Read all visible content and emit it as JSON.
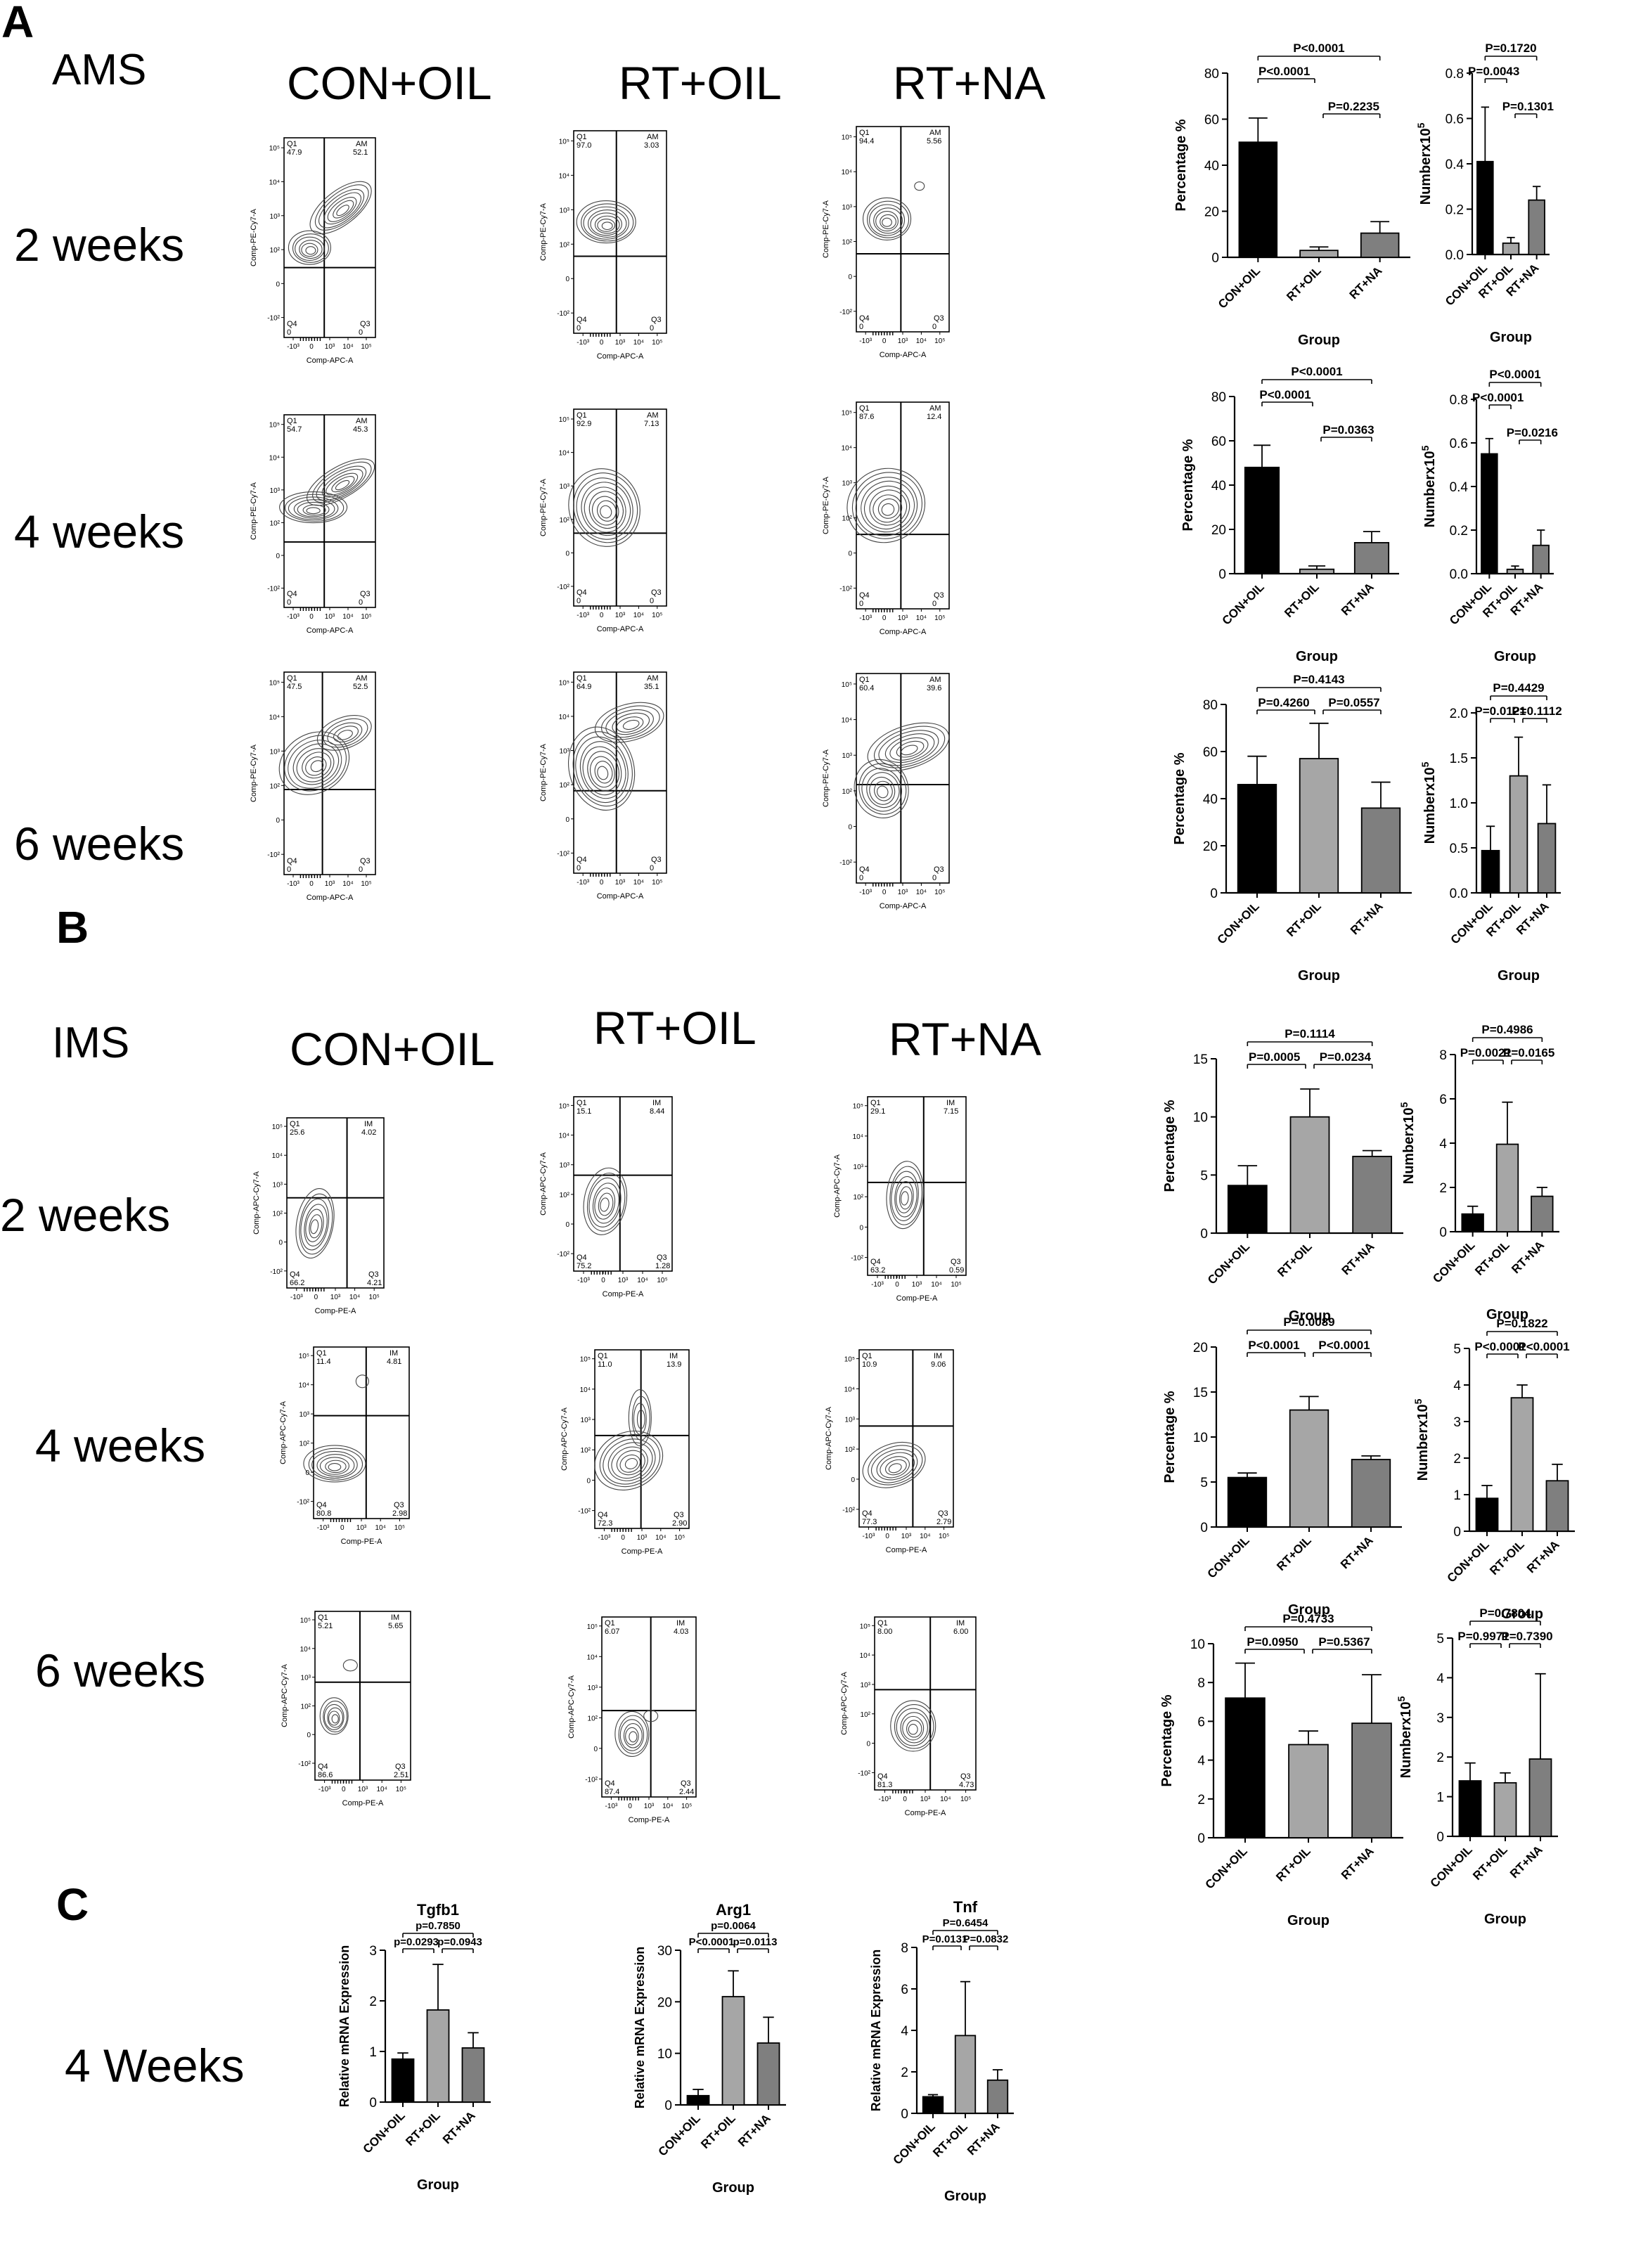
{
  "panels": {
    "A": {
      "letter": "A",
      "title": "AMS",
      "heads": [
        "CON+OIL",
        "RT+OIL",
        "RT+NA"
      ],
      "rows": [
        "2 weeks",
        "4 weeks",
        "6 weeks"
      ]
    },
    "B": {
      "letter": "B",
      "title": "IMS",
      "heads": [
        "CON+OIL",
        "RT+OIL",
        "RT+NA"
      ],
      "rows": [
        "2 weeks",
        "4 weeks",
        "6 weeks"
      ]
    },
    "C": {
      "letter": "C",
      "row": "4 Weeks"
    }
  },
  "flow_plots": [
    {
      "ylab": "Comp-PE-Cy7-A",
      "xlab": "Comp-APC-A",
      "gate": "AM",
      "q1": "47.9",
      "q2": "52.1",
      "q3": "0",
      "q4": "0"
    },
    {
      "ylab": "Comp-PE-Cy7-A",
      "xlab": "Comp-APC-A",
      "gate": "AM",
      "q1": "97.0",
      "q2": "3.03",
      "q3": "0",
      "q4": "0"
    },
    {
      "ylab": "Comp-PE-Cy7-A",
      "xlab": "Comp-APC-A",
      "gate": "AM",
      "q1": "94.4",
      "q2": "5.56",
      "q3": "0",
      "q4": "0"
    },
    {
      "ylab": "Comp-PE-Cy7-A",
      "xlab": "Comp-APC-A",
      "gate": "AM",
      "q1": "54.7",
      "q2": "45.3",
      "q3": "0",
      "q4": "0"
    },
    {
      "ylab": "Comp-PE-Cy7-A",
      "xlab": "Comp-APC-A",
      "gate": "AM",
      "q1": "92.9",
      "q2": "7.13",
      "q3": "0",
      "q4": "0"
    },
    {
      "ylab": "Comp-PE-Cy7-A",
      "xlab": "Comp-APC-A",
      "gate": "AM",
      "q1": "87.6",
      "q2": "12.4",
      "q3": "0",
      "q4": "0"
    },
    {
      "ylab": "Comp-PE-Cy7-A",
      "xlab": "Comp-APC-A",
      "gate": "AM",
      "q1": "47.5",
      "q2": "52.5",
      "q3": "0",
      "q4": "0"
    },
    {
      "ylab": "Comp-PE-Cy7-A",
      "xlab": "Comp-APC-A",
      "gate": "AM",
      "q1": "64.9",
      "q2": "35.1",
      "q3": "0",
      "q4": "0"
    },
    {
      "ylab": "Comp-PE-Cy7-A",
      "xlab": "Comp-APC-A",
      "gate": "AM",
      "q1": "60.4",
      "q2": "39.6",
      "q3": "0",
      "q4": "0"
    },
    {
      "ylab": "Comp-APC-Cy7-A",
      "xlab": "Comp-PE-A",
      "gate": "IM",
      "q1": "25.6",
      "q2": "4.02",
      "q3": "4.21",
      "q4": "66.2"
    },
    {
      "ylab": "Comp-APC-Cy7-A",
      "xlab": "Comp-PE-A",
      "gate": "IM",
      "q1": "15.1",
      "q2": "8.44",
      "q3": "1.28",
      "q4": "75.2"
    },
    {
      "ylab": "Comp-APC-Cy7-A",
      "xlab": "Comp-PE-A",
      "gate": "IM",
      "q1": "29.1",
      "q2": "7.15",
      "q3": "0.59",
      "q4": "63.2"
    },
    {
      "ylab": "Comp-APC-Cy7-A",
      "xlab": "Comp-PE-A",
      "gate": "IM",
      "q1": "11.4",
      "q2": "4.81",
      "q3": "2.98",
      "q4": "80.8"
    },
    {
      "ylab": "Comp-APC-Cy7-A",
      "xlab": "Comp-PE-A",
      "gate": "IM",
      "q1": "11.0",
      "q2": "13.9",
      "q3": "2.90",
      "q4": "72.3"
    },
    {
      "ylab": "Comp-APC-Cy7-A",
      "xlab": "Comp-PE-A",
      "gate": "IM",
      "q1": "10.9",
      "q2": "9.06",
      "q3": "2.79",
      "q4": "77.3"
    },
    {
      "ylab": "Comp-APC-Cy7-A",
      "xlab": "Comp-PE-A",
      "gate": "IM",
      "q1": "5.21",
      "q2": "5.65",
      "q3": "2.51",
      "q4": "86.6"
    },
    {
      "ylab": "Comp-APC-Cy7-A",
      "xlab": "Comp-PE-A",
      "gate": "IM",
      "q1": "6.07",
      "q2": "4.03",
      "q3": "2.44",
      "q4": "87.4"
    },
    {
      "ylab": "Comp-APC-Cy7-A",
      "xlab": "Comp-PE-A",
      "gate": "IM",
      "q1": "8.00",
      "q2": "6.00",
      "q3": "4.73",
      "q4": "81.3"
    }
  ],
  "chart_data": [
    {
      "type": "bar",
      "categories": [
        "CON+OIL",
        "RT+OIL",
        "RT+NA"
      ],
      "values": [
        50,
        3,
        10.5
      ],
      "errors": [
        10.5,
        1.5,
        5
      ],
      "ylabel": "Percentage %",
      "xlabel": "Group",
      "ylim": [
        0,
        80
      ],
      "yticks": [
        "0",
        "20",
        "40",
        "60",
        "80"
      ],
      "p_values": [
        "P<0.0001",
        "P<0.0001",
        "P=0.2235"
      ]
    },
    {
      "type": "bar",
      "categories": [
        "CON+OIL",
        "RT+OIL",
        "RT+NA"
      ],
      "values": [
        0.41,
        0.05,
        0.24
      ],
      "errors": [
        0.24,
        0.025,
        0.06
      ],
      "ylabel": "Numberx10",
      "ylabel_sup": "5",
      "xlabel": "Group",
      "ylim": [
        0,
        0.8
      ],
      "yticks": [
        "0.0",
        "0.2",
        "0.4",
        "0.6",
        "0.8"
      ],
      "p_values": [
        "P=0.1720",
        "P=0.0043",
        "P=0.1301"
      ]
    },
    {
      "type": "bar",
      "categories": [
        "CON+OIL",
        "RT+OIL",
        "RT+NA"
      ],
      "values": [
        48,
        2,
        14
      ],
      "errors": [
        10,
        1.5,
        5
      ],
      "ylabel": "Percentage %",
      "xlabel": "Group",
      "ylim": [
        0,
        80
      ],
      "yticks": [
        "0",
        "20",
        "40",
        "60",
        "80"
      ],
      "p_values": [
        "P<0.0001",
        "P<0.0001",
        "P=0.0363"
      ]
    },
    {
      "type": "bar",
      "categories": [
        "CON+OIL",
        "RT+OIL",
        "RT+NA"
      ],
      "values": [
        0.55,
        0.02,
        0.13
      ],
      "errors": [
        0.07,
        0.015,
        0.07
      ],
      "ylabel": "Numberx10",
      "ylabel_sup": "5",
      "xlabel": "Group",
      "ylim": [
        0,
        0.8
      ],
      "yticks": [
        "0.0",
        "0.2",
        "0.4",
        "0.6",
        "0.8"
      ],
      "p_values": [
        "P<0.0001",
        "P<0.0001",
        "P=0.0216"
      ]
    },
    {
      "type": "bar",
      "categories": [
        "CON+OIL",
        "RT+OIL",
        "RT+NA"
      ],
      "values": [
        46,
        57,
        36
      ],
      "errors": [
        12,
        15,
        11
      ],
      "ylabel": "Percentage %",
      "xlabel": "Group",
      "ylim": [
        0,
        80
      ],
      "yticks": [
        "0",
        "20",
        "40",
        "60",
        "80"
      ],
      "p_values": [
        "P=0.4143",
        "P=0.4260",
        "P=0.0557"
      ]
    },
    {
      "type": "bar",
      "categories": [
        "CON+OIL",
        "RT+OIL",
        "RT+NA"
      ],
      "values": [
        0.47,
        1.3,
        0.77
      ],
      "errors": [
        0.27,
        0.43,
        0.43
      ],
      "ylabel": "Numberx10",
      "ylabel_sup": "5",
      "xlabel": "Group",
      "ylim": [
        0,
        2.0
      ],
      "yticks": [
        "0.0",
        "0.5",
        "1.0",
        "1.5",
        "2.0"
      ],
      "p_values": [
        "P=0.4429",
        "P=0.0121",
        "P=0.1112"
      ]
    },
    {
      "type": "bar",
      "categories": [
        "CON+OIL",
        "RT+OIL",
        "RT+NA"
      ],
      "values": [
        4.1,
        10,
        6.6
      ],
      "errors": [
        1.7,
        2.4,
        0.5
      ],
      "ylabel": "Percentage %",
      "xlabel": "Group",
      "ylim": [
        0,
        15
      ],
      "yticks": [
        "0",
        "5",
        "10",
        "15"
      ],
      "p_values": [
        "P=0.1114",
        "P=0.0005",
        "P=0.0234"
      ]
    },
    {
      "type": "bar",
      "categories": [
        "CON+OIL",
        "RT+OIL",
        "RT+NA"
      ],
      "values": [
        0.8,
        3.95,
        1.6
      ],
      "errors": [
        0.35,
        1.9,
        0.4
      ],
      "ylabel": "Numberx10",
      "ylabel_sup": "5",
      "xlabel": "Group",
      "ylim": [
        0,
        8
      ],
      "yticks": [
        "0",
        "2",
        "4",
        "6",
        "8"
      ],
      "p_values": [
        "P=0.4986",
        "P=0.0021",
        "P=0.0165"
      ]
    },
    {
      "type": "bar",
      "categories": [
        "CON+OIL",
        "RT+OIL",
        "RT+NA"
      ],
      "values": [
        5.5,
        13,
        7.5
      ],
      "errors": [
        0.5,
        1.5,
        0.4
      ],
      "ylabel": "Percentage %",
      "xlabel": "Group",
      "ylim": [
        0,
        20
      ],
      "yticks": [
        "0",
        "5",
        "10",
        "15",
        "20"
      ],
      "p_values": [
        "P=0.0089",
        "P<0.0001",
        "P<0.0001"
      ]
    },
    {
      "type": "bar",
      "categories": [
        "CON+OIL",
        "RT+OIL",
        "RT+NA"
      ],
      "values": [
        0.9,
        3.65,
        1.38
      ],
      "errors": [
        0.35,
        0.35,
        0.45
      ],
      "ylabel": "Numberx10",
      "ylabel_sup": "5",
      "xlabel": "Group",
      "ylim": [
        0,
        5
      ],
      "yticks": [
        "0",
        "1",
        "2",
        "3",
        "4",
        "5"
      ],
      "p_values": [
        "P=0.1822",
        "P<0.0001",
        "P<0.0001"
      ]
    },
    {
      "type": "bar",
      "categories": [
        "CON+OIL",
        "RT+OIL",
        "RT+NA"
      ],
      "values": [
        7.2,
        4.8,
        5.9
      ],
      "errors": [
        1.8,
        0.7,
        2.5
      ],
      "ylabel": "Percentage %",
      "xlabel": "Group",
      "ylim": [
        0,
        10
      ],
      "yticks": [
        "0",
        "2",
        "4",
        "6",
        "8",
        "10"
      ],
      "p_values": [
        "P=0.4733",
        "P=0.0950",
        "P=0.5367"
      ]
    },
    {
      "type": "bar",
      "categories": [
        "CON+OIL",
        "RT+OIL",
        "RT+NA"
      ],
      "values": [
        1.4,
        1.35,
        1.95
      ],
      "errors": [
        0.45,
        0.25,
        2.15
      ],
      "ylabel": "Numberx10",
      "ylabel_sup": "5",
      "xlabel": "Group",
      "ylim": [
        0,
        5
      ],
      "yticks": [
        "0",
        "1",
        "2",
        "3",
        "4",
        "5"
      ],
      "p_values": [
        "P=0.7804",
        "P=0.9971",
        "P=0.7390"
      ]
    },
    {
      "type": "bar",
      "title": "Tgfb1",
      "categories": [
        "CON+OIL",
        "RT+OIL",
        "RT+NA"
      ],
      "values": [
        0.85,
        1.82,
        1.07
      ],
      "errors": [
        0.12,
        0.9,
        0.3
      ],
      "ylabel": "Relative mRNA Expression",
      "xlabel": "Group",
      "ylim": [
        0,
        3
      ],
      "yticks": [
        "0",
        "1",
        "2",
        "3"
      ],
      "p_values": [
        "p=0.7850",
        "p=0.0293",
        "p=0.0943"
      ]
    },
    {
      "type": "bar",
      "title": "Arg1",
      "categories": [
        "CON+OIL",
        "RT+OIL",
        "RT+NA"
      ],
      "values": [
        1.8,
        21,
        12
      ],
      "errors": [
        1.2,
        5,
        5
      ],
      "ylabel": "Relative mRNA Expression",
      "xlabel": "Group",
      "ylim": [
        0,
        30
      ],
      "yticks": [
        "0",
        "10",
        "20",
        "30"
      ],
      "p_values": [
        "p=0.0064",
        "P<0.0001",
        "p=0.0113"
      ]
    },
    {
      "type": "bar",
      "title": "Tnf",
      "categories": [
        "CON+OIL",
        "RT+OIL",
        "RT+NA"
      ],
      "values": [
        0.8,
        3.75,
        1.6
      ],
      "errors": [
        0.1,
        2.6,
        0.5
      ],
      "ylabel": "Relative mRNA Expression",
      "xlabel": "Group",
      "ylim": [
        0,
        8
      ],
      "yticks": [
        "0",
        "2",
        "4",
        "6",
        "8"
      ],
      "p_values": [
        "P=0.6454",
        "P=0.0131",
        "P=0.0832"
      ]
    }
  ]
}
